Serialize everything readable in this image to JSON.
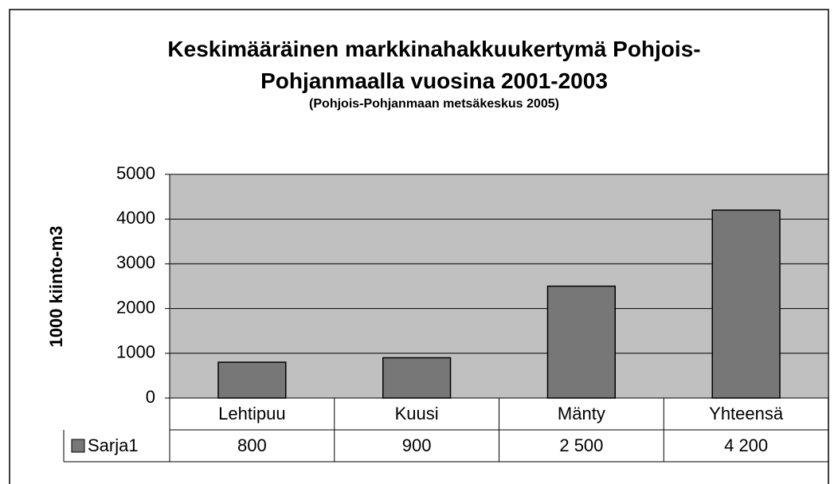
{
  "chart_data": {
    "type": "bar",
    "title": "Keskimääräinen markkinahakkuukertymä Pohjois-Pohjanmaalla vuosina 2001-2003",
    "subtitle": "(Pohjois-Pohjanmaan metsäkeskus 2005)",
    "y_label": "1000 kiinto-m3",
    "categories": [
      "Lehtipuu",
      "Kuusi",
      "Mänty",
      "Yhteensä"
    ],
    "series": [
      {
        "name": "Sarja1",
        "color": "#777777",
        "values": [
          800,
          900,
          2500,
          4200
        ],
        "value_labels": [
          "800",
          "900",
          "2 500",
          "4 200"
        ]
      }
    ],
    "ylim": [
      0,
      5000
    ],
    "yticks": [
      0,
      1000,
      2000,
      3000,
      4000,
      5000
    ],
    "grid": true,
    "plot_background": "#c0c0c0"
  }
}
